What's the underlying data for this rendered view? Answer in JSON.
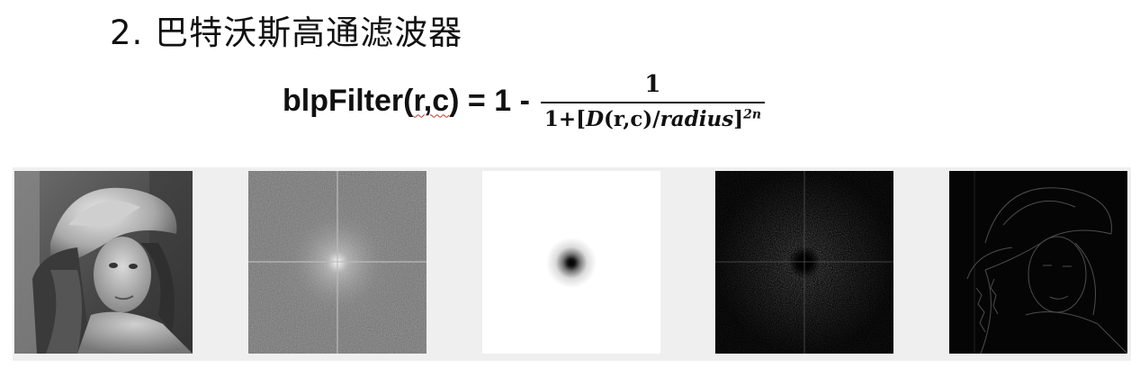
{
  "heading": "2. 巴特沃斯高通滤波器",
  "formula": {
    "name": "blpFilter",
    "lhs_open": "blpFilter(",
    "lhs_args": "r,c",
    "lhs_close": ") = 1 -",
    "numerator": "1",
    "den_prefix": "1+[",
    "den_D": "D",
    "den_args": "(r,c)",
    "den_slash": "/",
    "den_radius": "radius",
    "den_bracket": "]",
    "den_exponent": "2n"
  },
  "images": [
    {
      "name": "original-photo-grayscale"
    },
    {
      "name": "fourier-spectrum"
    },
    {
      "name": "butterworth-highpass-filter-mask"
    },
    {
      "name": "filtered-spectrum"
    },
    {
      "name": "highpass-result-edges"
    }
  ],
  "colors": {
    "strip_background": "#efefef",
    "text": "#111111",
    "spell_underline": "#c0392b"
  }
}
